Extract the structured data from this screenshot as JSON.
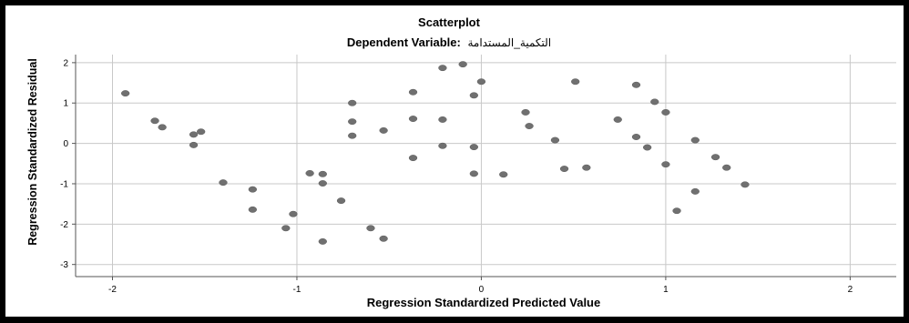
{
  "chart_data": {
    "type": "scatter",
    "title": "Scatterplot",
    "subtitle_prefix": "Dependent Variable:",
    "subtitle_variable": "التكمية_المستدامة",
    "xlabel": "Regression Standardized Predicted Value",
    "ylabel": "Regression Standardized Residual",
    "xlim": [
      -2.2,
      2.25
    ],
    "ylim": [
      -3.3,
      2.2
    ],
    "xticks": [
      -2,
      -1,
      0,
      1,
      2
    ],
    "yticks": [
      2,
      1,
      0,
      -1,
      -2,
      -3
    ],
    "grid": true,
    "colors": {
      "point": "#707070",
      "grid": "#c8c8c8",
      "axis": "#555555"
    },
    "points": [
      {
        "x": -1.93,
        "y": 1.24
      },
      {
        "x": -1.77,
        "y": 0.56
      },
      {
        "x": -1.73,
        "y": 0.4
      },
      {
        "x": -1.56,
        "y": 0.22
      },
      {
        "x": -1.56,
        "y": -0.04
      },
      {
        "x": -1.52,
        "y": 0.29
      },
      {
        "x": -1.4,
        "y": -0.97
      },
      {
        "x": -1.24,
        "y": -1.14
      },
      {
        "x": -1.24,
        "y": -1.64
      },
      {
        "x": -1.06,
        "y": -2.1
      },
      {
        "x": -1.02,
        "y": -1.75
      },
      {
        "x": -0.93,
        "y": -0.74
      },
      {
        "x": -0.86,
        "y": -0.76
      },
      {
        "x": -0.86,
        "y": -0.99
      },
      {
        "x": -0.86,
        "y": -2.43
      },
      {
        "x": -0.76,
        "y": -1.42
      },
      {
        "x": -0.7,
        "y": 1.0
      },
      {
        "x": -0.7,
        "y": 0.54
      },
      {
        "x": -0.7,
        "y": 0.19
      },
      {
        "x": -0.6,
        "y": -2.1
      },
      {
        "x": -0.53,
        "y": 0.32
      },
      {
        "x": -0.53,
        "y": -2.36
      },
      {
        "x": -0.37,
        "y": 1.27
      },
      {
        "x": -0.37,
        "y": 0.61
      },
      {
        "x": -0.37,
        "y": -0.36
      },
      {
        "x": -0.21,
        "y": 1.87
      },
      {
        "x": -0.21,
        "y": 0.59
      },
      {
        "x": -0.21,
        "y": -0.06
      },
      {
        "x": -0.1,
        "y": 1.96
      },
      {
        "x": -0.04,
        "y": 1.19
      },
      {
        "x": -0.04,
        "y": -0.09
      },
      {
        "x": -0.04,
        "y": -0.75
      },
      {
        "x": 0.0,
        "y": 1.53
      },
      {
        "x": 0.12,
        "y": -0.77
      },
      {
        "x": 0.24,
        "y": 0.77
      },
      {
        "x": 0.26,
        "y": 0.43
      },
      {
        "x": 0.4,
        "y": 0.08
      },
      {
        "x": 0.45,
        "y": -0.63
      },
      {
        "x": 0.51,
        "y": 1.53
      },
      {
        "x": 0.57,
        "y": -0.6
      },
      {
        "x": 0.74,
        "y": 0.59
      },
      {
        "x": 0.84,
        "y": 1.45
      },
      {
        "x": 0.84,
        "y": 0.16
      },
      {
        "x": 0.9,
        "y": -0.1
      },
      {
        "x": 0.94,
        "y": 1.03
      },
      {
        "x": 1.0,
        "y": 0.77
      },
      {
        "x": 1.0,
        "y": -0.52
      },
      {
        "x": 1.06,
        "y": -1.67
      },
      {
        "x": 1.16,
        "y": 0.08
      },
      {
        "x": 1.16,
        "y": -1.19
      },
      {
        "x": 1.27,
        "y": -0.34
      },
      {
        "x": 1.33,
        "y": -0.6
      },
      {
        "x": 1.43,
        "y": -1.02
      }
    ]
  }
}
